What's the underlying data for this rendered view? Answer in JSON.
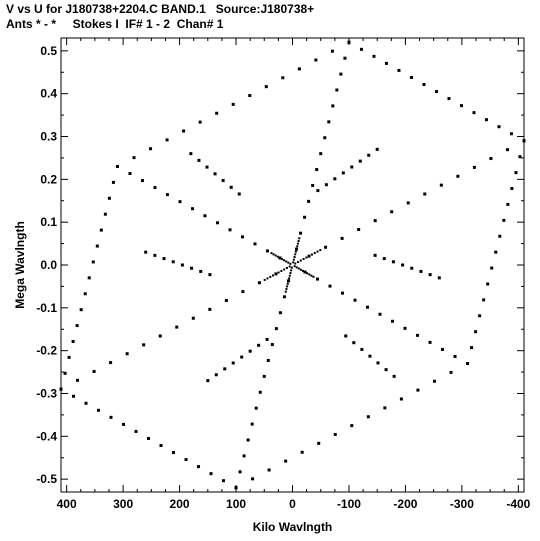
{
  "header": {
    "line1": "V vs U for J180738+2204.C BAND.1   Source:J180738+",
    "line2": "Ants * - *     Stokes I  IF# 1 - 2  Chan# 1"
  },
  "chart_data": {
    "type": "scatter",
    "title": "V vs U for J180738+2204.C BAND.1   Source:J180738+",
    "subtitle": "Ants * - *     Stokes I  IF# 1 - 2  Chan# 1",
    "xlabel": "Kilo Wavlngth",
    "ylabel": "Mega Wavlngth",
    "x_reversed": true,
    "xlim": [
      410,
      -410
    ],
    "ylim": [
      -0.53,
      0.53
    ],
    "xticks": [
      400,
      300,
      200,
      100,
      0,
      -100,
      -200,
      -300,
      -400
    ],
    "xtick_labels": [
      "400",
      "300",
      "200",
      "100",
      "0",
      "-100",
      "-200",
      "-300",
      "-400"
    ],
    "yticks": [
      0.5,
      0.4,
      0.3,
      0.2,
      0.1,
      0.0,
      -0.1,
      -0.2,
      -0.3,
      -0.4,
      -0.5
    ],
    "ytick_labels": [
      "0.5",
      "0.4",
      "0.3",
      "0.2",
      "0.1",
      "0.0",
      "-0.1",
      "-0.2",
      "-0.3",
      "-0.4",
      "-0.5"
    ],
    "grid": false,
    "legend": "none",
    "marker_color": "#000000",
    "arms": [
      {
        "start": [
          0,
          0
        ],
        "end": [
          -100,
          0.52
        ],
        "points": 14
      },
      {
        "start": [
          0,
          0
        ],
        "end": [
          100,
          -0.52
        ],
        "points": 14
      },
      {
        "start": [
          0,
          0
        ],
        "end": [
          -410,
          0.29
        ],
        "points": 14
      },
      {
        "start": [
          0,
          0
        ],
        "end": [
          410,
          -0.29
        ],
        "points": 14
      },
      {
        "start": [
          0,
          0
        ],
        "end": [
          310,
          0.23
        ],
        "points": 14
      },
      {
        "start": [
          0,
          0
        ],
        "end": [
          -310,
          -0.23
        ],
        "points": 14
      },
      {
        "start": [
          -100,
          0.52
        ],
        "end": [
          -410,
          0.29
        ],
        "points": 14
      },
      {
        "start": [
          -410,
          0.29
        ],
        "end": [
          -310,
          -0.23
        ],
        "points": 14
      },
      {
        "start": [
          -310,
          -0.23
        ],
        "end": [
          100,
          -0.52
        ],
        "points": 14
      },
      {
        "start": [
          100,
          -0.52
        ],
        "end": [
          410,
          -0.29
        ],
        "points": 14
      },
      {
        "start": [
          410,
          -0.29
        ],
        "end": [
          310,
          0.23
        ],
        "points": 14
      },
      {
        "start": [
          310,
          0.23
        ],
        "end": [
          -100,
          0.52
        ],
        "points": 14
      },
      {
        "start": [
          -30,
          0.16
        ],
        "end": [
          -150,
          0.27
        ],
        "points": 8
      },
      {
        "start": [
          30,
          -0.16
        ],
        "end": [
          150,
          -0.27
        ],
        "points": 8
      },
      {
        "start": [
          -130,
          0.03
        ],
        "end": [
          -260,
          -0.03
        ],
        "points": 8
      },
      {
        "start": [
          130,
          -0.03
        ],
        "end": [
          260,
          0.03
        ],
        "points": 8
      },
      {
        "start": [
          -80,
          -0.15
        ],
        "end": [
          -180,
          -0.26
        ],
        "points": 7
      },
      {
        "start": [
          80,
          0.15
        ],
        "end": [
          180,
          0.26
        ],
        "points": 7
      }
    ]
  }
}
